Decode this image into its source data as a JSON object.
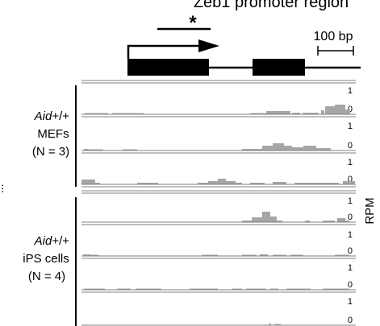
{
  "figure": {
    "title": "Zeb1 promoter region",
    "asterisk": "*",
    "scale_bar": "100 bp",
    "y_axis_unit": "RPM",
    "cut_off_left_label": "...",
    "track_scale_max": "1",
    "track_scale_min": "0"
  },
  "groups": [
    {
      "genotype": "Aid",
      "genotype_suffix": "+/+",
      "cell_type": "MEFs",
      "n": "(N = 3)"
    },
    {
      "genotype": "Aid",
      "genotype_suffix": "+/+",
      "cell_type": "iPS cells",
      "n": "(N = 4)"
    }
  ],
  "colors": {
    "signal": "#a6a6a6",
    "exon": "#000000",
    "line": "#000000"
  }
}
